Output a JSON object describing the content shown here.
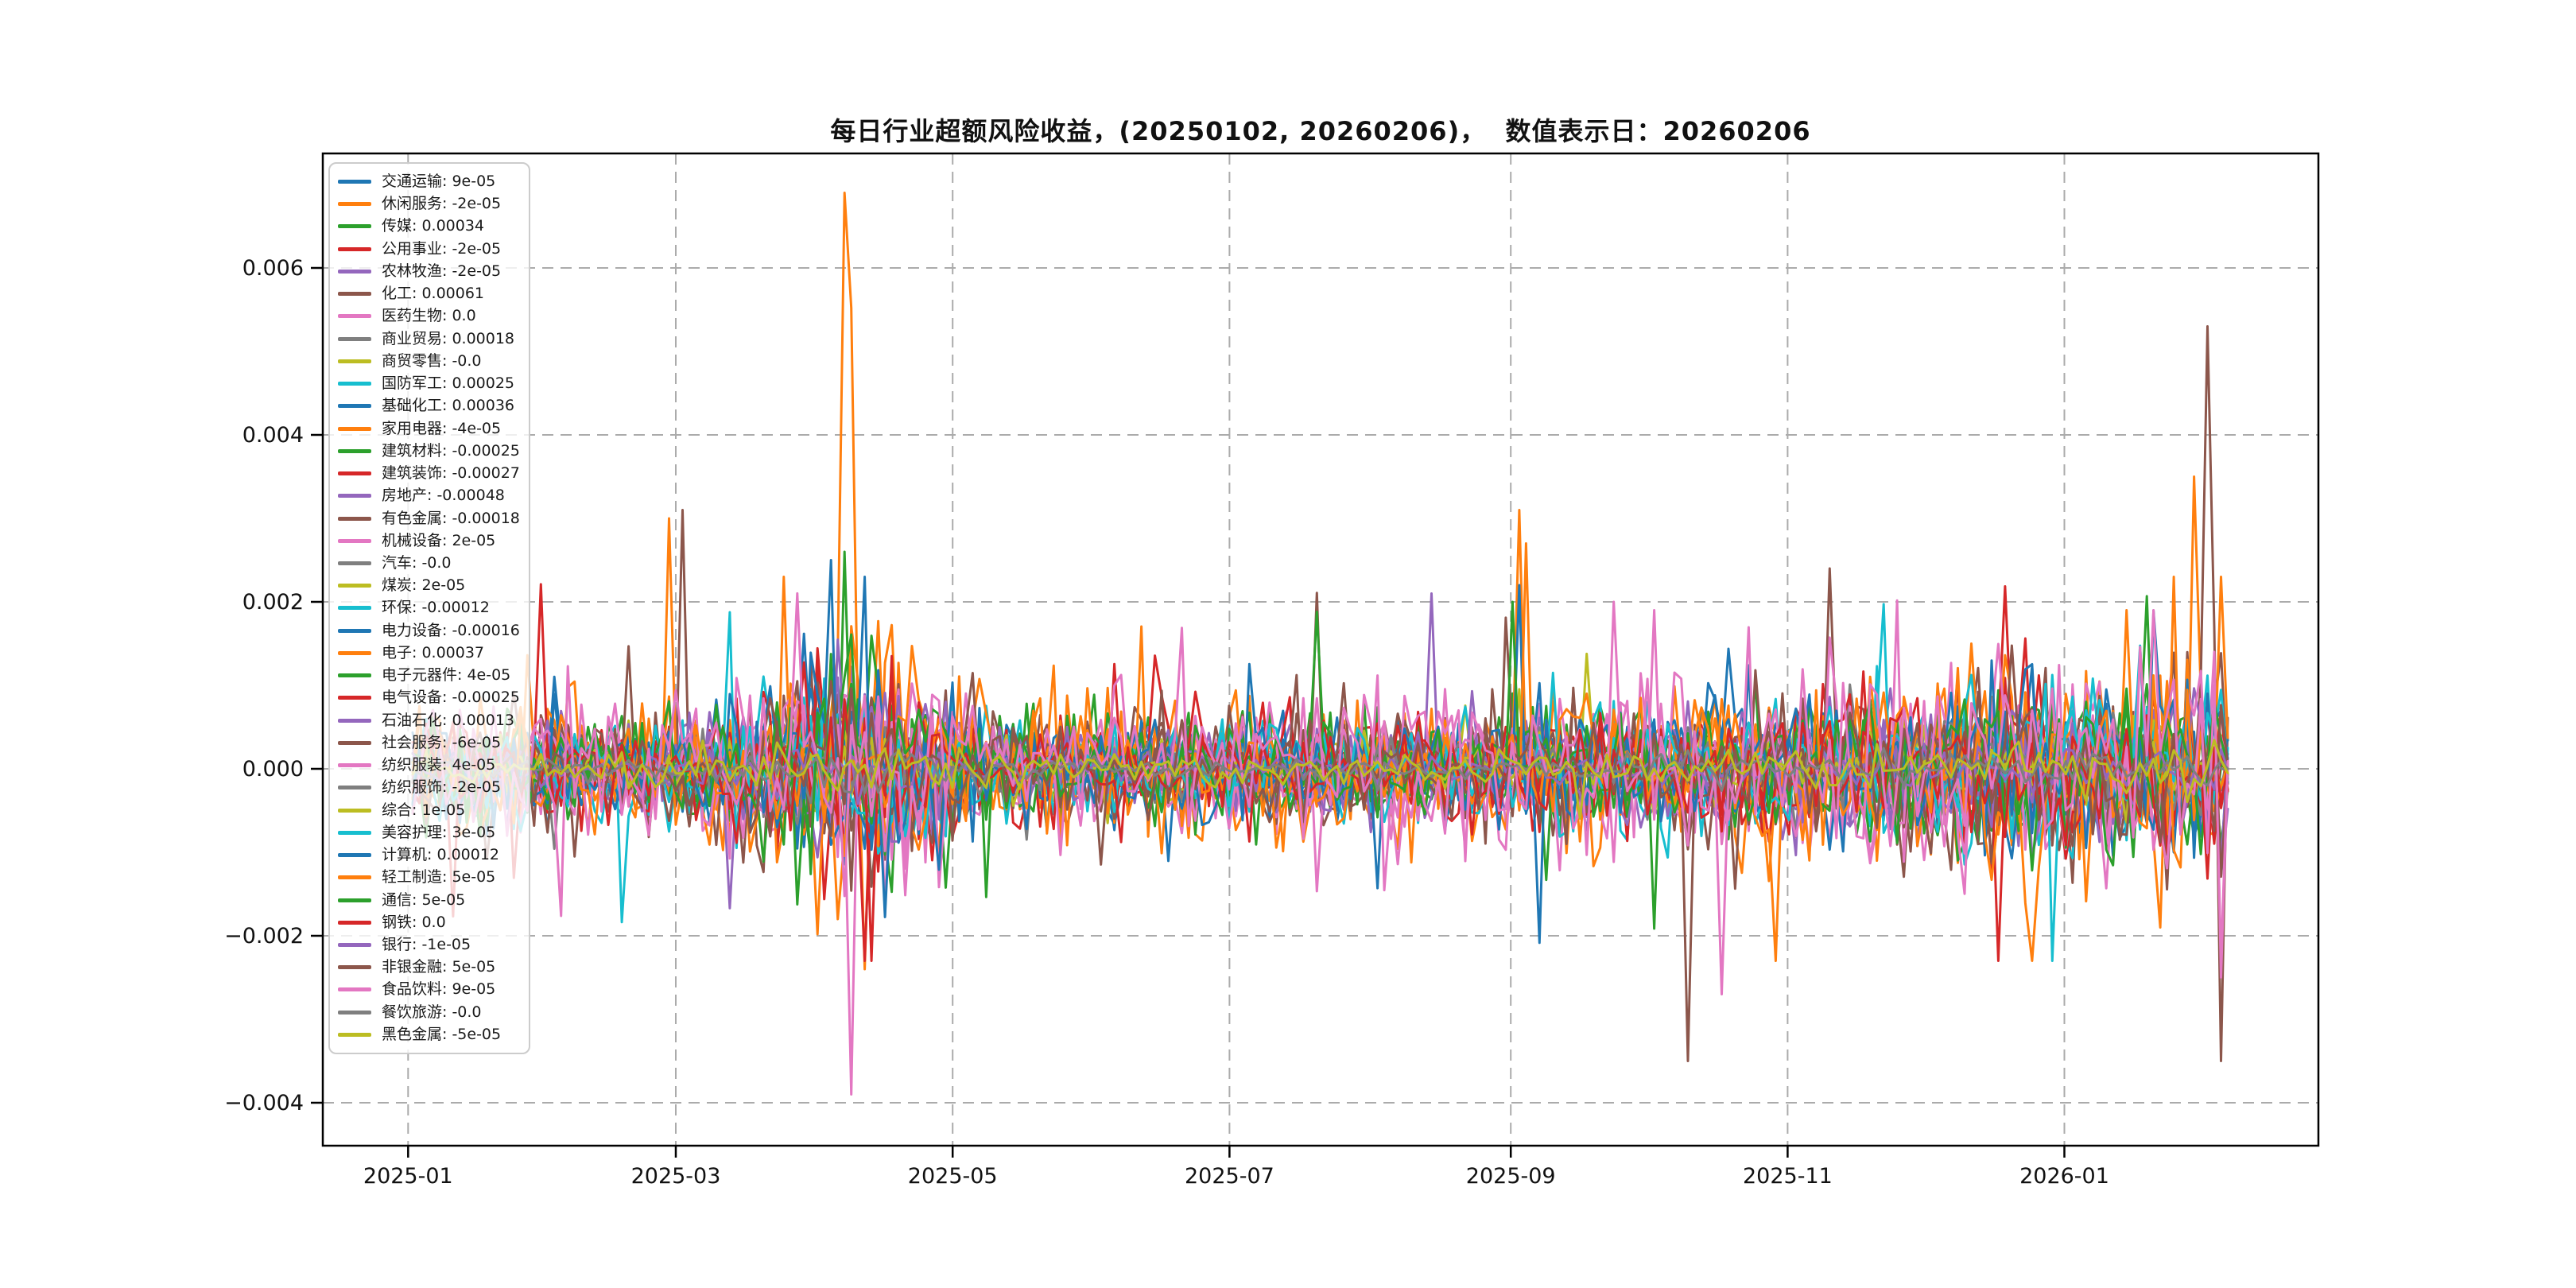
{
  "chart_data": {
    "type": "line",
    "title": "每日行业超额风险收益，(20250102, 20260206)，  数值表示日：20260206",
    "x_range": [
      "2025-01-02",
      "2026-02-06"
    ],
    "ylim": [
      -0.004514,
      0.00737
    ],
    "grid": true,
    "legend_position": "upper left",
    "x_ticks": [
      {
        "label": "2025-01",
        "date": "2025-01-01"
      },
      {
        "label": "2025-03",
        "date": "2025-03-01"
      },
      {
        "label": "2025-05",
        "date": "2025-05-01"
      },
      {
        "label": "2025-07",
        "date": "2025-07-01"
      },
      {
        "label": "2025-09",
        "date": "2025-09-01"
      },
      {
        "label": "2025-11",
        "date": "2025-11-01"
      },
      {
        "label": "2026-01",
        "date": "2026-01-01"
      }
    ],
    "y_ticks": [
      {
        "label": "0.006",
        "value": 0.006
      },
      {
        "label": "0.004",
        "value": 0.004
      },
      {
        "label": "0.002",
        "value": 0.002
      },
      {
        "label": "0.000",
        "value": 0.0
      },
      {
        "label": "−0.002",
        "value": -0.002
      },
      {
        "label": "−0.004",
        "value": -0.004
      }
    ],
    "series": [
      {
        "name": "交通运输",
        "value_label": "9e-05",
        "value": 9e-05,
        "color": "#1f77b4",
        "volatility": 0.00028
      },
      {
        "name": "休闲服务",
        "value_label": "-2e-05",
        "value": -2e-05,
        "color": "#ff7f0e",
        "volatility": 0.00055
      },
      {
        "name": "传媒",
        "value_label": "0.00034",
        "value": 0.00034,
        "color": "#2ca02c",
        "volatility": 0.00042
      },
      {
        "name": "公用事业",
        "value_label": "-2e-05",
        "value": -2e-05,
        "color": "#d62728",
        "volatility": 0.0003
      },
      {
        "name": "农林牧渔",
        "value_label": "-2e-05",
        "value": -2e-05,
        "color": "#9467bd",
        "volatility": 0.0003
      },
      {
        "name": "化工",
        "value_label": "0.00061",
        "value": 0.00061,
        "color": "#8c564b",
        "volatility": 0.00045
      },
      {
        "name": "医药生物",
        "value_label": "0.0",
        "value": 0.0,
        "color": "#e377c2",
        "volatility": 0.00035
      },
      {
        "name": "商业贸易",
        "value_label": "0.00018",
        "value": 0.00018,
        "color": "#7f7f7f",
        "volatility": 0.00022
      },
      {
        "name": "商贸零售",
        "value_label": "-0.0",
        "value": -0.0,
        "color": "#bcbd22",
        "volatility": 0.0002
      },
      {
        "name": "国防军工",
        "value_label": "0.00025",
        "value": 0.00025,
        "color": "#17becf",
        "volatility": 0.0004
      },
      {
        "name": "基础化工",
        "value_label": "0.00036",
        "value": 0.00036,
        "color": "#1f77b4",
        "volatility": 0.00035
      },
      {
        "name": "家用电器",
        "value_label": "-4e-05",
        "value": -4e-05,
        "color": "#ff7f0e",
        "volatility": 0.00032
      },
      {
        "name": "建筑材料",
        "value_label": "-0.00025",
        "value": -0.00025,
        "color": "#2ca02c",
        "volatility": 0.00035
      },
      {
        "name": "建筑装饰",
        "value_label": "-0.00027",
        "value": -0.00027,
        "color": "#d62728",
        "volatility": 0.0004
      },
      {
        "name": "房地产",
        "value_label": "-0.00048",
        "value": -0.00048,
        "color": "#9467bd",
        "volatility": 0.00038
      },
      {
        "name": "有色金属",
        "value_label": "-0.00018",
        "value": -0.00018,
        "color": "#8c564b",
        "volatility": 0.00045
      },
      {
        "name": "机械设备",
        "value_label": "2e-05",
        "value": 2e-05,
        "color": "#e377c2",
        "volatility": 0.0005
      },
      {
        "name": "汽车",
        "value_label": "-0.0",
        "value": -0.0,
        "color": "#7f7f7f",
        "volatility": 0.0001
      },
      {
        "name": "煤炭",
        "value_label": "2e-05",
        "value": 2e-05,
        "color": "#bcbd22",
        "volatility": 0.00022
      },
      {
        "name": "环保",
        "value_label": "-0.00012",
        "value": -0.00012,
        "color": "#17becf",
        "volatility": 0.00035
      },
      {
        "name": "电力设备",
        "value_label": "-0.00016",
        "value": -0.00016,
        "color": "#1f77b4",
        "volatility": 0.00035
      },
      {
        "name": "电子",
        "value_label": "0.00037",
        "value": 0.00037,
        "color": "#ff7f0e",
        "volatility": 0.0006
      },
      {
        "name": "电子元器件",
        "value_label": "4e-05",
        "value": 4e-05,
        "color": "#2ca02c",
        "volatility": 0.0004
      },
      {
        "name": "电气设备",
        "value_label": "-0.00025",
        "value": -0.00025,
        "color": "#d62728",
        "volatility": 0.00045
      },
      {
        "name": "石油石化",
        "value_label": "0.00013",
        "value": 0.00013,
        "color": "#9467bd",
        "volatility": 0.00035
      },
      {
        "name": "社会服务",
        "value_label": "-6e-05",
        "value": -6e-05,
        "color": "#8c564b",
        "volatility": 0.0004
      },
      {
        "name": "纺织服装",
        "value_label": "4e-05",
        "value": 4e-05,
        "color": "#e377c2",
        "volatility": 0.00055
      },
      {
        "name": "纺织服饰",
        "value_label": "-2e-05",
        "value": -2e-05,
        "color": "#7f7f7f",
        "volatility": 0.00018
      },
      {
        "name": "综合",
        "value_label": "1e-05",
        "value": 1e-05,
        "color": "#bcbd22",
        "volatility": 0.00012
      },
      {
        "name": "美容护理",
        "value_label": "3e-05",
        "value": 3e-05,
        "color": "#17becf",
        "volatility": 0.00035
      },
      {
        "name": "计算机",
        "value_label": "0.00012",
        "value": 0.00012,
        "color": "#1f77b4",
        "volatility": 0.00045
      },
      {
        "name": "轻工制造",
        "value_label": "5e-05",
        "value": 5e-05,
        "color": "#ff7f0e",
        "volatility": 0.0005
      },
      {
        "name": "通信",
        "value_label": "5e-05",
        "value": 5e-05,
        "color": "#2ca02c",
        "volatility": 0.0004
      },
      {
        "name": "钢铁",
        "value_label": "0.0",
        "value": 0.0,
        "color": "#d62728",
        "volatility": 0.0003
      },
      {
        "name": "银行",
        "value_label": "-1e-05",
        "value": -1e-05,
        "color": "#9467bd",
        "volatility": 0.00012
      },
      {
        "name": "非银金融",
        "value_label": "5e-05",
        "value": 5e-05,
        "color": "#8c564b",
        "volatility": 0.0003
      },
      {
        "name": "食品饮料",
        "value_label": "9e-05",
        "value": 9e-05,
        "color": "#e377c2",
        "volatility": 0.0005
      },
      {
        "name": "餐饮旅游",
        "value_label": "-0.0",
        "value": -0.0,
        "color": "#7f7f7f",
        "volatility": 8e-05
      },
      {
        "name": "黑色金属",
        "value_label": "-5e-05",
        "value": -5e-05,
        "color": "#bcbd22",
        "volatility": 0.00012
      }
    ],
    "events": [
      {
        "series": "电子",
        "date": "2025-02-28",
        "value": 0.003
      },
      {
        "series": "有色金属",
        "date": "2025-03-03",
        "value": 0.0031
      },
      {
        "series": "计算机",
        "date": "2025-04-04",
        "value": 0.0025
      },
      {
        "series": "传媒",
        "date": "2025-04-07",
        "value": 0.0026
      },
      {
        "series": "休闲服务",
        "date": "2025-04-07",
        "value": 0.0069
      },
      {
        "series": "纺织服装",
        "date": "2025-04-09",
        "value": -0.0039
      },
      {
        "series": "休闲服务",
        "date": "2025-04-11",
        "value": -0.0024
      },
      {
        "series": "石油石化",
        "date": "2025-08-15",
        "value": 0.0021
      },
      {
        "series": "电子",
        "date": "2025-09-03",
        "value": 0.0031
      },
      {
        "series": "轻工制造",
        "date": "2025-09-04",
        "value": 0.0027
      },
      {
        "series": "计算机",
        "date": "2025-09-03",
        "value": 0.0022
      },
      {
        "series": "通信",
        "date": "2025-09-02",
        "value": 0.002
      },
      {
        "series": "食品饮料",
        "date": "2025-09-24",
        "value": 0.002
      },
      {
        "series": "机械设备",
        "date": "2025-10-02",
        "value": 0.0019
      },
      {
        "series": "社会服务",
        "date": "2025-10-10",
        "value": -0.0035
      },
      {
        "series": "食品饮料",
        "date": "2025-10-17",
        "value": -0.0027
      },
      {
        "series": "有色金属",
        "date": "2025-11-10",
        "value": 0.0024
      },
      {
        "series": "食品饮料",
        "date": "2026-01-20",
        "value": 0.0019
      },
      {
        "series": "电子",
        "date": "2026-01-15",
        "value": 0.0019
      },
      {
        "series": "休闲服务",
        "date": "2026-01-30",
        "value": 0.0035
      },
      {
        "series": "化工",
        "date": "2026-02-02",
        "value": 0.0053
      },
      {
        "series": "机械设备",
        "date": "2026-02-03",
        "value": 0.0035
      },
      {
        "series": "化工",
        "date": "2026-02-05",
        "value": -0.0035
      },
      {
        "series": "机械设备",
        "date": "2026-02-05",
        "value": -0.0025
      }
    ]
  }
}
